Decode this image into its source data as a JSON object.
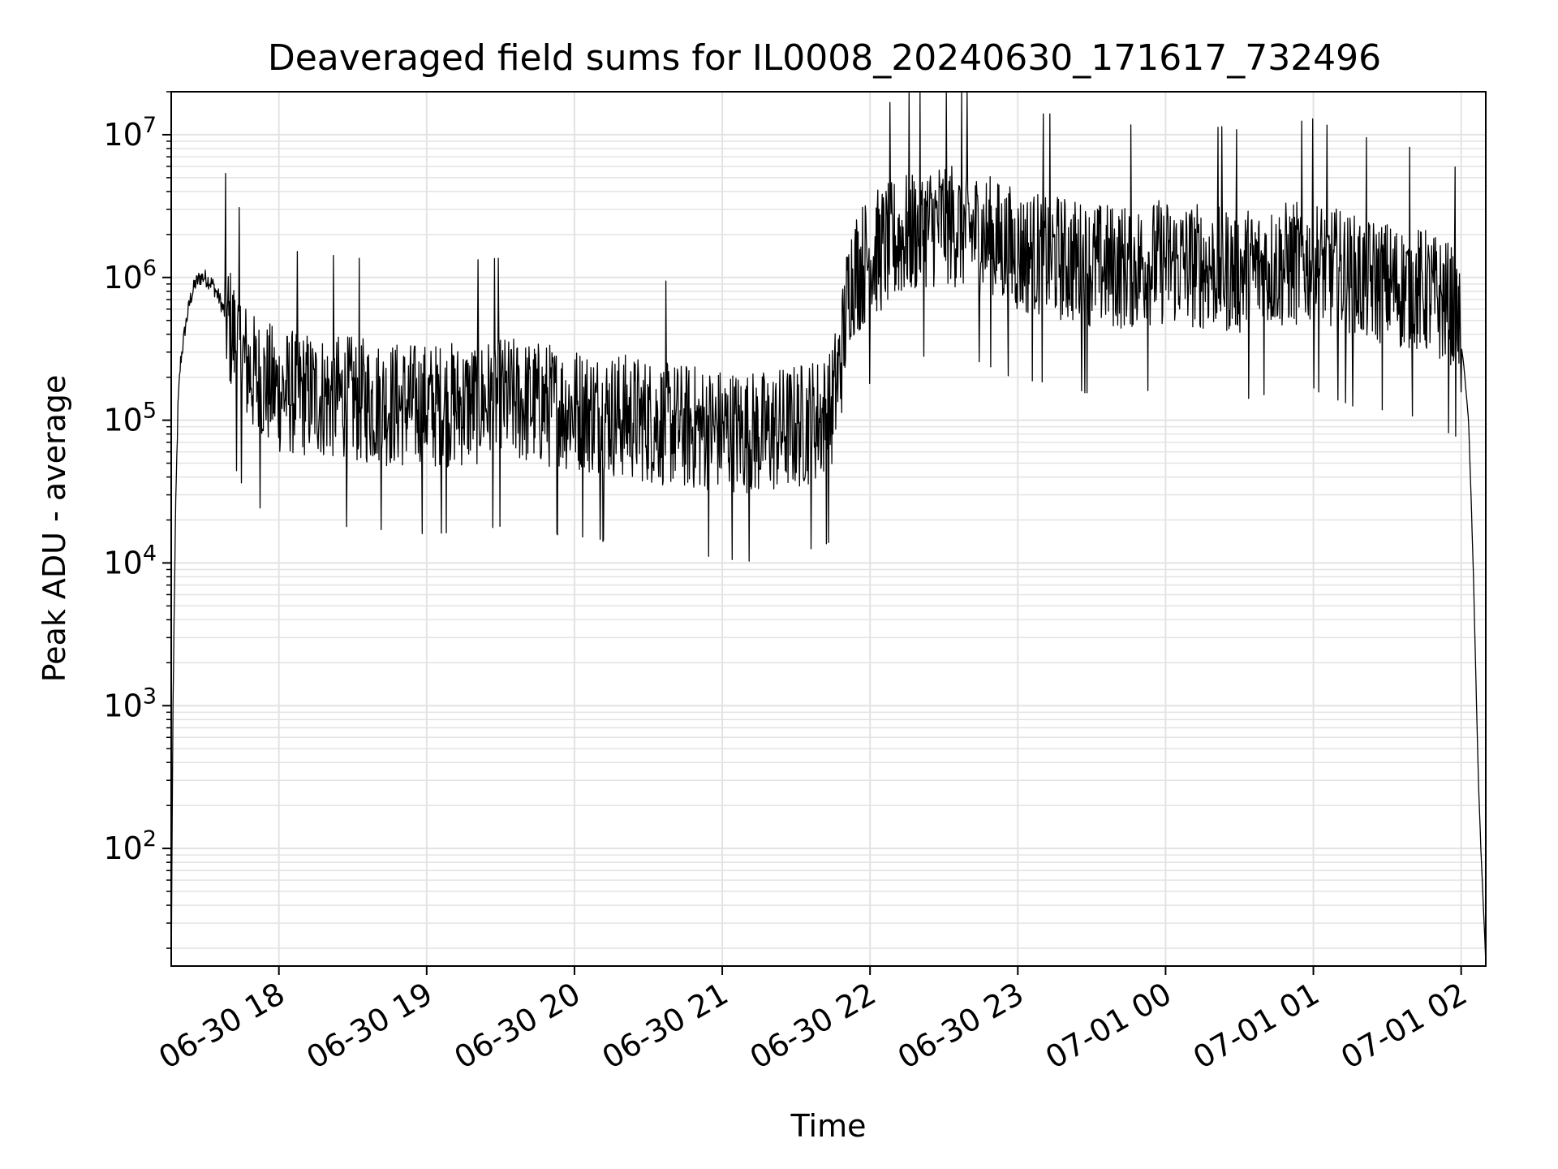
{
  "chart_data": {
    "type": "line",
    "title": "Deaveraged field sums for IL0008_20240630_171617_732496",
    "xlabel": "Time",
    "ylabel": "Peak ADU - average",
    "yscale": "log",
    "ylim": [
      15,
      20000000
    ],
    "xlim": [
      "2024-06-30 17:16:17",
      "2024-07-01 02:10:00"
    ],
    "grid": true,
    "line_color": "#000000",
    "grid_color": "#e3e3e3",
    "x_ticks": [
      {
        "value": "2024-06-30 18:00",
        "label": "06-30 18"
      },
      {
        "value": "2024-06-30 19:00",
        "label": "06-30 19"
      },
      {
        "value": "2024-06-30 20:00",
        "label": "06-30 20"
      },
      {
        "value": "2024-06-30 21:00",
        "label": "06-30 21"
      },
      {
        "value": "2024-06-30 22:00",
        "label": "06-30 22"
      },
      {
        "value": "2024-06-30 23:00",
        "label": "06-30 23"
      },
      {
        "value": "2024-07-01 00:00",
        "label": "07-01 00"
      },
      {
        "value": "2024-07-01 01:00",
        "label": "07-01 01"
      },
      {
        "value": "2024-07-01 02:00",
        "label": "07-01 02"
      }
    ],
    "y_ticks": [
      {
        "value": 100,
        "base": "10",
        "exp": "2"
      },
      {
        "value": 1000,
        "base": "10",
        "exp": "3"
      },
      {
        "value": 10000,
        "base": "10",
        "exp": "4"
      },
      {
        "value": 100000,
        "base": "10",
        "exp": "5"
      },
      {
        "value": 1000000,
        "base": "10",
        "exp": "6"
      },
      {
        "value": 10000000,
        "base": "10",
        "exp": "7"
      }
    ],
    "series": [
      {
        "x": [
          "2024-06-30 17:16:20",
          "2024-06-30 17:17:00",
          "2024-06-30 17:18:00",
          "2024-06-30 17:19:00",
          "2024-06-30 17:20:00",
          "2024-06-30 17:22:00",
          "2024-06-30 17:24:00",
          "2024-06-30 17:26:00",
          "2024-06-30 17:28:00",
          "2024-06-30 17:30:00",
          "2024-06-30 17:33:00",
          "2024-06-30 17:36:00",
          "2024-06-30 17:40:00",
          "2024-06-30 17:45:00",
          "2024-06-30 17:50:00",
          "2024-06-30 18:00:00",
          "2024-06-30 18:15:00",
          "2024-06-30 18:30:00",
          "2024-06-30 18:45:00",
          "2024-06-30 19:00:00",
          "2024-06-30 19:15:00",
          "2024-06-30 19:30:00",
          "2024-06-30 19:45:00",
          "2024-06-30 20:00:00",
          "2024-06-30 20:15:00",
          "2024-06-30 20:30:00",
          "2024-06-30 20:45:00",
          "2024-06-30 21:00:00",
          "2024-06-30 21:15:00",
          "2024-06-30 21:30:00",
          "2024-06-30 21:44:00",
          "2024-06-30 21:48:00",
          "2024-06-30 21:52:00",
          "2024-06-30 22:00:00",
          "2024-06-30 22:15:00",
          "2024-06-30 22:30:00",
          "2024-06-30 22:45:00",
          "2024-06-30 23:00:00",
          "2024-06-30 23:15:00",
          "2024-06-30 23:30:00",
          "2024-06-30 23:45:00",
          "2024-07-01 00:00:00",
          "2024-07-01 00:15:00",
          "2024-07-01 00:30:00",
          "2024-07-01 00:45:00",
          "2024-07-01 01:00:00",
          "2024-07-01 01:15:00",
          "2024-07-01 01:30:00",
          "2024-07-01 01:45:00",
          "2024-07-01 01:58:00",
          "2024-07-01 02:01:00",
          "2024-07-01 02:03:00",
          "2024-07-01 02:04:00",
          "2024-07-01 02:05:00",
          "2024-07-01 02:06:00",
          "2024-07-01 02:07:00",
          "2024-07-01 02:08:00",
          "2024-07-01 02:09:00",
          "2024-07-01 02:10:00"
        ],
        "y": [
          18,
          1000,
          20000,
          120000,
          250000,
          450000,
          700000,
          900000,
          1000000,
          1000000,
          900000,
          700000,
          450000,
          280000,
          200000,
          160000,
          150000,
          140000,
          130000,
          125000,
          130000,
          140000,
          130000,
          120000,
          110000,
          100000,
          90000,
          85000,
          80000,
          90000,
          110000,
          250000,
          1000000,
          1400000,
          2000000,
          2500000,
          2000000,
          1500000,
          1400000,
          1200000,
          1200000,
          1300000,
          1200000,
          1100000,
          1200000,
          1300000,
          1000000,
          900000,
          800000,
          600000,
          250000,
          100000,
          30000,
          8000,
          1500,
          300,
          100,
          40,
          16
        ]
      }
    ]
  }
}
